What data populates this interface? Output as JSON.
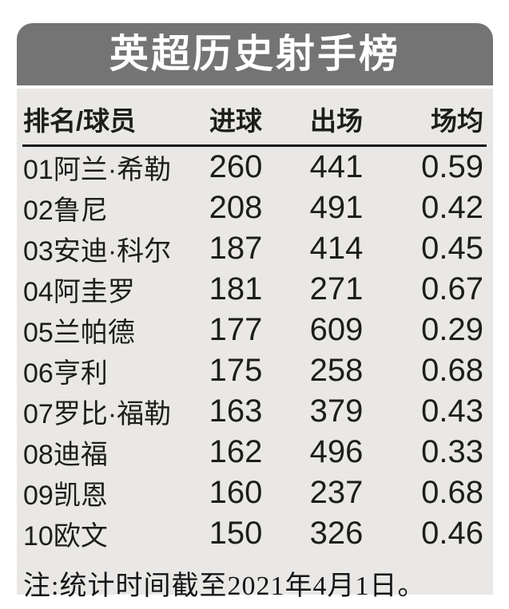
{
  "title": "英超历史射手榜",
  "table": {
    "headers": {
      "player": "排名/球员",
      "goals": "进球",
      "apps": "出场",
      "avg": "场均"
    },
    "rows": [
      {
        "rank": "01",
        "player": "阿兰·希勒",
        "goals": "260",
        "apps": "441",
        "avg": "0.59"
      },
      {
        "rank": "02",
        "player": "鲁尼",
        "goals": "208",
        "apps": "491",
        "avg": "0.42"
      },
      {
        "rank": "03",
        "player": "安迪·科尔",
        "goals": "187",
        "apps": "414",
        "avg": "0.45"
      },
      {
        "rank": "04",
        "player": "阿圭罗",
        "goals": "181",
        "apps": "271",
        "avg": "0.67"
      },
      {
        "rank": "05",
        "player": "兰帕德",
        "goals": "177",
        "apps": "609",
        "avg": "0.29"
      },
      {
        "rank": "06",
        "player": "亨利",
        "goals": "175",
        "apps": "258",
        "avg": "0.68"
      },
      {
        "rank": "07",
        "player": "罗比·福勒",
        "goals": "163",
        "apps": "379",
        "avg": "0.43"
      },
      {
        "rank": "08",
        "player": "迪福",
        "goals": "162",
        "apps": "496",
        "avg": "0.33"
      },
      {
        "rank": "09",
        "player": "凯恩",
        "goals": "160",
        "apps": "237",
        "avg": "0.68"
      },
      {
        "rank": "10",
        "player": "欧文",
        "goals": "150",
        "apps": "326",
        "avg": "0.46"
      }
    ]
  },
  "note": "注:统计时间截至2021年4月1日。",
  "colors": {
    "banner_bg": "#747474",
    "body_bg": "#e9e8e6",
    "title_text": "#ffffff",
    "text": "#1d1d1b",
    "rule": "#161616",
    "page_bg": "#ffffff"
  },
  "chart_data": {
    "type": "table",
    "title": "英超历史射手榜",
    "columns": [
      "排名/球员",
      "进球",
      "出场",
      "场均"
    ],
    "rows": [
      [
        "01阿兰·希勒",
        260,
        441,
        0.59
      ],
      [
        "02鲁尼",
        208,
        491,
        0.42
      ],
      [
        "03安迪·科尔",
        187,
        414,
        0.45
      ],
      [
        "04阿圭罗",
        181,
        271,
        0.67
      ],
      [
        "05兰帕德",
        177,
        609,
        0.29
      ],
      [
        "06亨利",
        175,
        258,
        0.68
      ],
      [
        "07罗比·福勒",
        163,
        379,
        0.43
      ],
      [
        "08迪福",
        162,
        496,
        0.33
      ],
      [
        "09凯恩",
        160,
        237,
        0.68
      ],
      [
        "10欧文",
        150,
        326,
        0.46
      ]
    ],
    "note": "注:统计时间截至2021年4月1日。"
  }
}
